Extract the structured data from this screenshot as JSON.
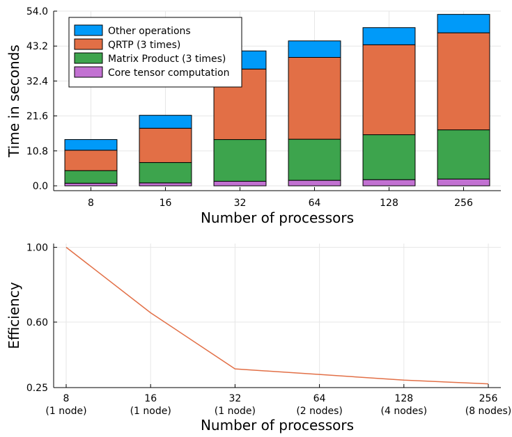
{
  "chart_data": [
    {
      "type": "bar",
      "stacked": true,
      "title": "",
      "xlabel": "Number of processors",
      "ylabel": "Time in seconds",
      "categories": [
        "8",
        "16",
        "32",
        "64",
        "128",
        "256"
      ],
      "yticks": [
        "0.0",
        "10.8",
        "21.6",
        "32.4",
        "43.2",
        "54.0"
      ],
      "ylim": [
        -1.5,
        54.0
      ],
      "grid": true,
      "legend_position": "top-left",
      "series": [
        {
          "name": "Core tensor computation",
          "color": "#c271d2",
          "values": [
            0.8,
            0.9,
            1.4,
            1.7,
            1.9,
            2.1
          ]
        },
        {
          "name": "Matrix Product (3 times)",
          "color": "#3da44d",
          "values": [
            3.9,
            6.3,
            12.9,
            12.7,
            13.9,
            15.2
          ]
        },
        {
          "name": "QRTP (3 times)",
          "color": "#e26f46",
          "values": [
            6.3,
            10.6,
            21.8,
            25.3,
            27.8,
            30.0
          ]
        },
        {
          "name": "Other operations",
          "color": "#009af9",
          "values": [
            3.3,
            4.0,
            5.6,
            5.1,
            5.3,
            5.7
          ]
        }
      ],
      "legend_order": [
        "Other operations",
        "QRTP (3 times)",
        "Matrix Product (3 times)",
        "Core tensor computation"
      ]
    },
    {
      "type": "line",
      "title": "",
      "xlabel": "Number of processors",
      "ylabel": "Efficiency",
      "categories": [
        "8",
        "16",
        "32",
        "64",
        "128",
        "256"
      ],
      "category_sublabels": [
        "(1 node)",
        "(1 node)",
        "(1 node)",
        "(2 nodes)",
        "(4 nodes)",
        "(8 nodes)"
      ],
      "yticks": [
        "0.25",
        "0.60",
        "1.00"
      ],
      "ylim": [
        0.25,
        1.02
      ],
      "grid": true,
      "series": [
        {
          "color": "#e26f46",
          "values": [
            1.0,
            0.65,
            0.35,
            0.32,
            0.29,
            0.27
          ]
        }
      ]
    }
  ]
}
